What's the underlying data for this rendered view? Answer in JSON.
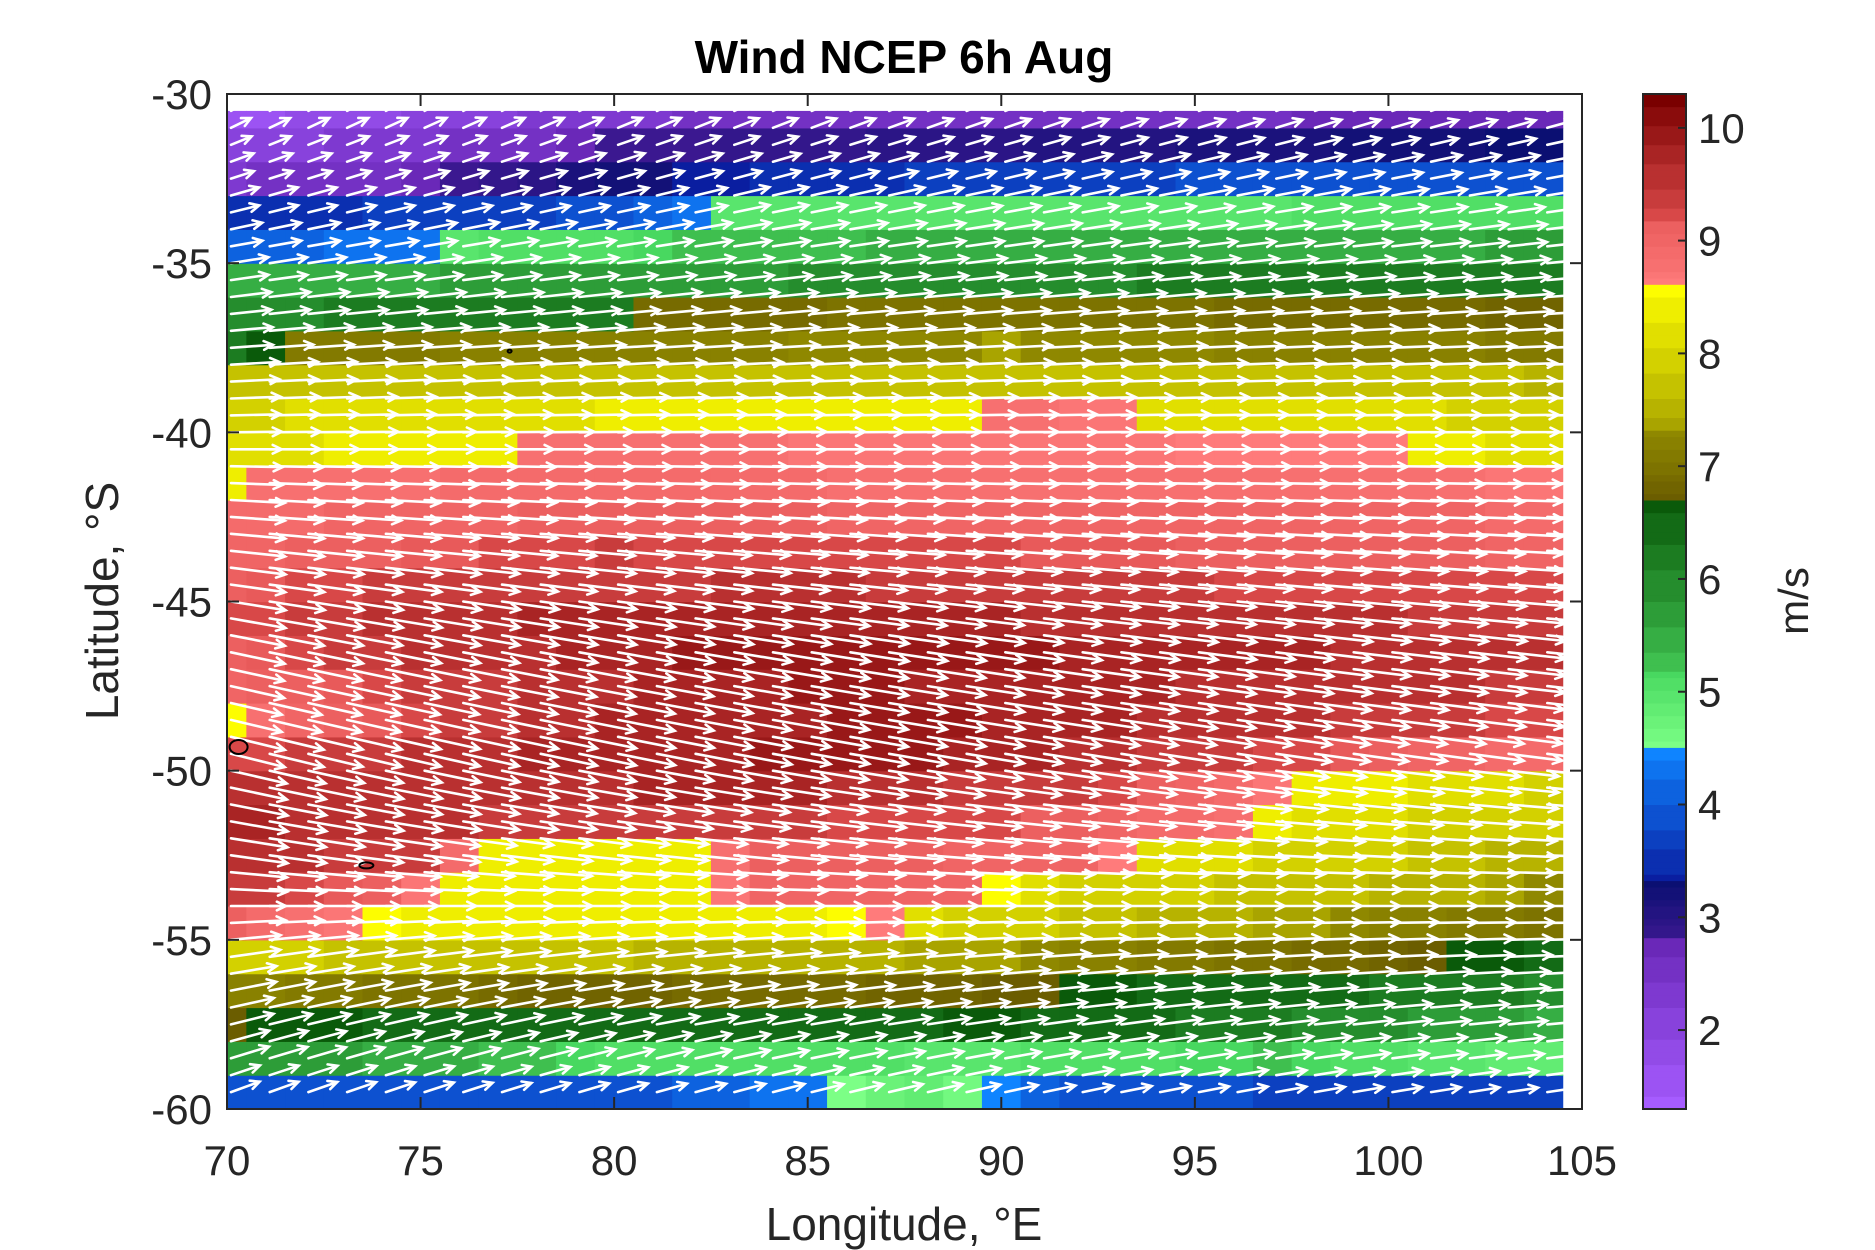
{
  "chart_data": {
    "type": "heatmap",
    "title": "Wind NCEP 6h Aug",
    "xlabel": "Longitude, °E",
    "ylabel": "Latitude, °S",
    "xlim": [
      70,
      105
    ],
    "ylim": [
      -60,
      -30
    ],
    "x_ticks": [
      70,
      75,
      80,
      85,
      90,
      95,
      100,
      105
    ],
    "y_ticks": [
      -30,
      -35,
      -40,
      -45,
      -50,
      -55,
      -60
    ],
    "grid": false,
    "colorbar": {
      "label": "m/s",
      "range": [
        1.3,
        10.3
      ],
      "ticks": [
        2,
        3,
        4,
        5,
        6,
        7,
        8,
        9,
        10
      ],
      "bands": [
        {
          "from": 1.3,
          "to": 2.8,
          "low": "#a65cff",
          "high": "#6a28b8"
        },
        {
          "from": 2.8,
          "to": 3.3,
          "low": "#3b1890",
          "high": "#0b0f72"
        },
        {
          "from": 3.3,
          "to": 4.5,
          "low": "#0a1ea0",
          "high": "#0f84ff"
        },
        {
          "from": 4.5,
          "to": 5.2,
          "low": "#7cff86",
          "high": "#48d860"
        },
        {
          "from": 5.2,
          "to": 6.7,
          "low": "#3fbf4f",
          "high": "#0a5a0a"
        },
        {
          "from": 6.7,
          "to": 7.3,
          "low": "#6b5d00",
          "high": "#8f8800"
        },
        {
          "from": 7.3,
          "to": 8.6,
          "low": "#a9a400",
          "high": "#fdfd00"
        },
        {
          "from": 8.6,
          "to": 9.2,
          "low": "#ff7b7b",
          "high": "#e85a5a"
        },
        {
          "from": 9.2,
          "to": 10.3,
          "low": "#d84848",
          "high": "#7a0000"
        }
      ]
    },
    "grid_cells": {
      "lon_start": 70,
      "lon_end": 104.5,
      "lat_start": -59.5,
      "lat_end": -30.5,
      "lon_step": 1,
      "lat_step": 1
    },
    "speed_rows": [
      {
        "lat": -59.5,
        "knots": [
          [
            70,
            3.8
          ],
          [
            80,
            3.9
          ],
          [
            85,
            4.3
          ],
          [
            88,
            4.9
          ],
          [
            92,
            3.9
          ],
          [
            100,
            3.7
          ],
          [
            105,
            3.6
          ]
        ]
      },
      {
        "lat": -58.5,
        "knots": [
          [
            70,
            5.8
          ],
          [
            80,
            5.1
          ],
          [
            90,
            5.0
          ],
          [
            97,
            5.2
          ],
          [
            105,
            4.8
          ]
        ]
      },
      {
        "lat": -57.5,
        "knots": [
          [
            70,
            6.7
          ],
          [
            76,
            6.5
          ],
          [
            80,
            6.5
          ],
          [
            85,
            6.5
          ],
          [
            90,
            6.6
          ],
          [
            95,
            6.3
          ],
          [
            105,
            5.4
          ]
        ]
      },
      {
        "lat": -56.5,
        "knots": [
          [
            70,
            7.2
          ],
          [
            75,
            7.0
          ],
          [
            79,
            6.8
          ],
          [
            84,
            6.9
          ],
          [
            89,
            6.8
          ],
          [
            95,
            6.5
          ],
          [
            100,
            6.3
          ],
          [
            105,
            6.0
          ]
        ]
      },
      {
        "lat": -55.5,
        "knots": [
          [
            70,
            8.0
          ],
          [
            75,
            7.7
          ],
          [
            82,
            7.6
          ],
          [
            88,
            7.4
          ],
          [
            95,
            7.1
          ],
          [
            100,
            6.8
          ],
          [
            105,
            6.5
          ]
        ]
      },
      {
        "lat": -54.5,
        "knots": [
          [
            70,
            9.1
          ],
          [
            72,
            8.8
          ],
          [
            75,
            8.4
          ],
          [
            82,
            8.3
          ],
          [
            87,
            8.6
          ],
          [
            88,
            8.1
          ],
          [
            95,
            7.5
          ],
          [
            100,
            7.2
          ],
          [
            105,
            7.0
          ]
        ]
      },
      {
        "lat": -53.5,
        "knots": [
          [
            70,
            9.4
          ],
          [
            74,
            9.1
          ],
          [
            76,
            8.3
          ],
          [
            82,
            8.3
          ],
          [
            84,
            9.0
          ],
          [
            89,
            9.0
          ],
          [
            91,
            8.1
          ],
          [
            100,
            7.6
          ],
          [
            105,
            7.2
          ]
        ]
      },
      {
        "lat": -52.5,
        "knots": [
          [
            70,
            9.6
          ],
          [
            75,
            9.3
          ],
          [
            77,
            8.4
          ],
          [
            82,
            8.4
          ],
          [
            84,
            9.1
          ],
          [
            92,
            9.0
          ],
          [
            94,
            8.2
          ],
          [
            100,
            7.9
          ],
          [
            105,
            7.4
          ]
        ]
      },
      {
        "lat": -51.5,
        "knots": [
          [
            70,
            9.7
          ],
          [
            75,
            9.5
          ],
          [
            80,
            9.4
          ],
          [
            90,
            9.2
          ],
          [
            96,
            8.8
          ],
          [
            97,
            8.3
          ],
          [
            105,
            7.8
          ]
        ]
      },
      {
        "lat": -50.5,
        "knots": [
          [
            70,
            9.6
          ],
          [
            75,
            9.6
          ],
          [
            85,
            9.7
          ],
          [
            92,
            9.3
          ],
          [
            96,
            8.9
          ],
          [
            98,
            8.4
          ],
          [
            105,
            8.0
          ]
        ]
      },
      {
        "lat": -49.5,
        "knots": [
          [
            70,
            9.2
          ],
          [
            72,
            9.3
          ],
          [
            80,
            9.8
          ],
          [
            88,
            9.9
          ],
          [
            95,
            9.4
          ],
          [
            100,
            9.1
          ],
          [
            105,
            8.8
          ]
        ]
      },
      {
        "lat": -48.5,
        "knots": [
          [
            70,
            8.5
          ],
          [
            72,
            9.0
          ],
          [
            80,
            9.7
          ],
          [
            88,
            9.9
          ],
          [
            95,
            9.6
          ],
          [
            105,
            9.2
          ]
        ]
      },
      {
        "lat": -47.5,
        "knots": [
          [
            70,
            9.0
          ],
          [
            75,
            9.3
          ],
          [
            85,
            9.9
          ],
          [
            93,
            9.7
          ],
          [
            105,
            9.4
          ]
        ]
      },
      {
        "lat": -46.5,
        "knots": [
          [
            70,
            9.1
          ],
          [
            75,
            9.5
          ],
          [
            85,
            10.0
          ],
          [
            93,
            9.8
          ],
          [
            105,
            9.5
          ]
        ]
      },
      {
        "lat": -45.5,
        "knots": [
          [
            70,
            9.2
          ],
          [
            75,
            9.6
          ],
          [
            85,
            9.8
          ],
          [
            93,
            9.6
          ],
          [
            105,
            9.4
          ]
        ]
      },
      {
        "lat": -44.5,
        "knots": [
          [
            70,
            9.1
          ],
          [
            75,
            9.4
          ],
          [
            85,
            9.5
          ],
          [
            95,
            9.3
          ],
          [
            105,
            9.2
          ]
        ]
      },
      {
        "lat": -43.5,
        "knots": [
          [
            70,
            9.0
          ],
          [
            80,
            9.3
          ],
          [
            90,
            9.2
          ],
          [
            100,
            9.1
          ],
          [
            105,
            9.0
          ]
        ]
      },
      {
        "lat": -42.5,
        "knots": [
          [
            70,
            8.9
          ],
          [
            80,
            9.1
          ],
          [
            90,
            9.0
          ],
          [
            100,
            9.0
          ],
          [
            105,
            8.9
          ]
        ]
      },
      {
        "lat": -41.5,
        "knots": [
          [
            70,
            8.4
          ],
          [
            71,
            8.8
          ],
          [
            80,
            8.9
          ],
          [
            90,
            8.8
          ],
          [
            100,
            8.8
          ],
          [
            105,
            8.7
          ]
        ]
      },
      {
        "lat": -40.5,
        "knots": [
          [
            70,
            8.2
          ],
          [
            77,
            8.4
          ],
          [
            78,
            8.8
          ],
          [
            90,
            8.7
          ],
          [
            100,
            8.6
          ],
          [
            101,
            8.3
          ],
          [
            105,
            8.2
          ]
        ]
      },
      {
        "lat": -39.5,
        "knots": [
          [
            70,
            8.0
          ],
          [
            80,
            8.3
          ],
          [
            89,
            8.3
          ],
          [
            90,
            8.8
          ],
          [
            93,
            8.7
          ],
          [
            94,
            8.2
          ],
          [
            105,
            8.0
          ]
        ]
      },
      {
        "lat": -38.5,
        "knots": [
          [
            70,
            7.7
          ],
          [
            80,
            7.8
          ],
          [
            90,
            7.7
          ],
          [
            100,
            7.7
          ],
          [
            105,
            7.6
          ]
        ]
      },
      {
        "lat": -37.5,
        "knots": [
          [
            70,
            6.3
          ],
          [
            72,
            7.1
          ],
          [
            80,
            7.2
          ],
          [
            90,
            7.3
          ],
          [
            100,
            7.2
          ],
          [
            105,
            7.1
          ]
        ]
      },
      {
        "lat": -36.5,
        "knots": [
          [
            70,
            6.0
          ],
          [
            80,
            6.3
          ],
          [
            81,
            6.9
          ],
          [
            90,
            7.0
          ],
          [
            100,
            6.9
          ],
          [
            105,
            6.8
          ]
        ]
      },
      {
        "lat": -35.5,
        "knots": [
          [
            70,
            5.4
          ],
          [
            80,
            5.7
          ],
          [
            90,
            6.0
          ],
          [
            100,
            6.2
          ],
          [
            105,
            6.2
          ]
        ]
      },
      {
        "lat": -34.5,
        "knots": [
          [
            70,
            4.1
          ],
          [
            75,
            4.3
          ],
          [
            76,
            5.0
          ],
          [
            85,
            5.3
          ],
          [
            95,
            5.5
          ],
          [
            105,
            5.6
          ]
        ]
      },
      {
        "lat": -33.5,
        "knots": [
          [
            70,
            3.5
          ],
          [
            78,
            3.7
          ],
          [
            82,
            4.2
          ],
          [
            83,
            5.0
          ],
          [
            95,
            5.0
          ],
          [
            105,
            5.1
          ]
        ]
      },
      {
        "lat": -32.5,
        "knots": [
          [
            70,
            2.4
          ],
          [
            75,
            2.7
          ],
          [
            80,
            3.2
          ],
          [
            90,
            3.7
          ],
          [
            100,
            3.9
          ],
          [
            105,
            4.0
          ]
        ]
      },
      {
        "lat": -31.5,
        "knots": [
          [
            70,
            2.0
          ],
          [
            75,
            2.4
          ],
          [
            80,
            2.8
          ],
          [
            90,
            3.0
          ],
          [
            100,
            3.2
          ],
          [
            105,
            3.3
          ]
        ]
      },
      {
        "lat": -30.5,
        "knots": [
          [
            70,
            1.5
          ],
          [
            75,
            2.0
          ],
          [
            80,
            2.4
          ],
          [
            90,
            2.6
          ],
          [
            100,
            2.7
          ],
          [
            105,
            2.8
          ]
        ]
      }
    ],
    "wind_direction_rows": [
      {
        "lat": -59.5,
        "knots": [
          [
            70,
            20
          ],
          [
            90,
            12
          ],
          [
            105,
            8
          ]
        ]
      },
      {
        "lat": -55.5,
        "knots": [
          [
            70,
            8
          ],
          [
            90,
            4
          ],
          [
            105,
            2
          ]
        ]
      },
      {
        "lat": -52.5,
        "knots": [
          [
            70,
            -8
          ],
          [
            90,
            -4
          ],
          [
            105,
            -2
          ]
        ]
      },
      {
        "lat": -49.5,
        "knots": [
          [
            70,
            -14
          ],
          [
            85,
            -10
          ],
          [
            105,
            -7
          ]
        ]
      },
      {
        "lat": -46.5,
        "knots": [
          [
            70,
            -12
          ],
          [
            90,
            -8
          ],
          [
            105,
            -6
          ]
        ]
      },
      {
        "lat": -43.5,
        "knots": [
          [
            70,
            -6
          ],
          [
            90,
            -4
          ],
          [
            105,
            -3
          ]
        ]
      },
      {
        "lat": -40.5,
        "knots": [
          [
            70,
            0
          ],
          [
            105,
            0
          ]
        ]
      },
      {
        "lat": -37.5,
        "knots": [
          [
            70,
            4
          ],
          [
            105,
            2
          ]
        ]
      },
      {
        "lat": -34.5,
        "knots": [
          [
            70,
            10
          ],
          [
            105,
            6
          ]
        ]
      },
      {
        "lat": -31.5,
        "knots": [
          [
            70,
            22
          ],
          [
            90,
            16
          ],
          [
            105,
            12
          ]
        ]
      },
      {
        "lat": -30.5,
        "knots": [
          [
            70,
            30
          ],
          [
            90,
            22
          ],
          [
            105,
            18
          ]
        ]
      }
    ],
    "arrows": {
      "lon_step": 1,
      "lat_step": 0.5,
      "color": "#ffffff"
    },
    "coastline_color": "#000000"
  }
}
